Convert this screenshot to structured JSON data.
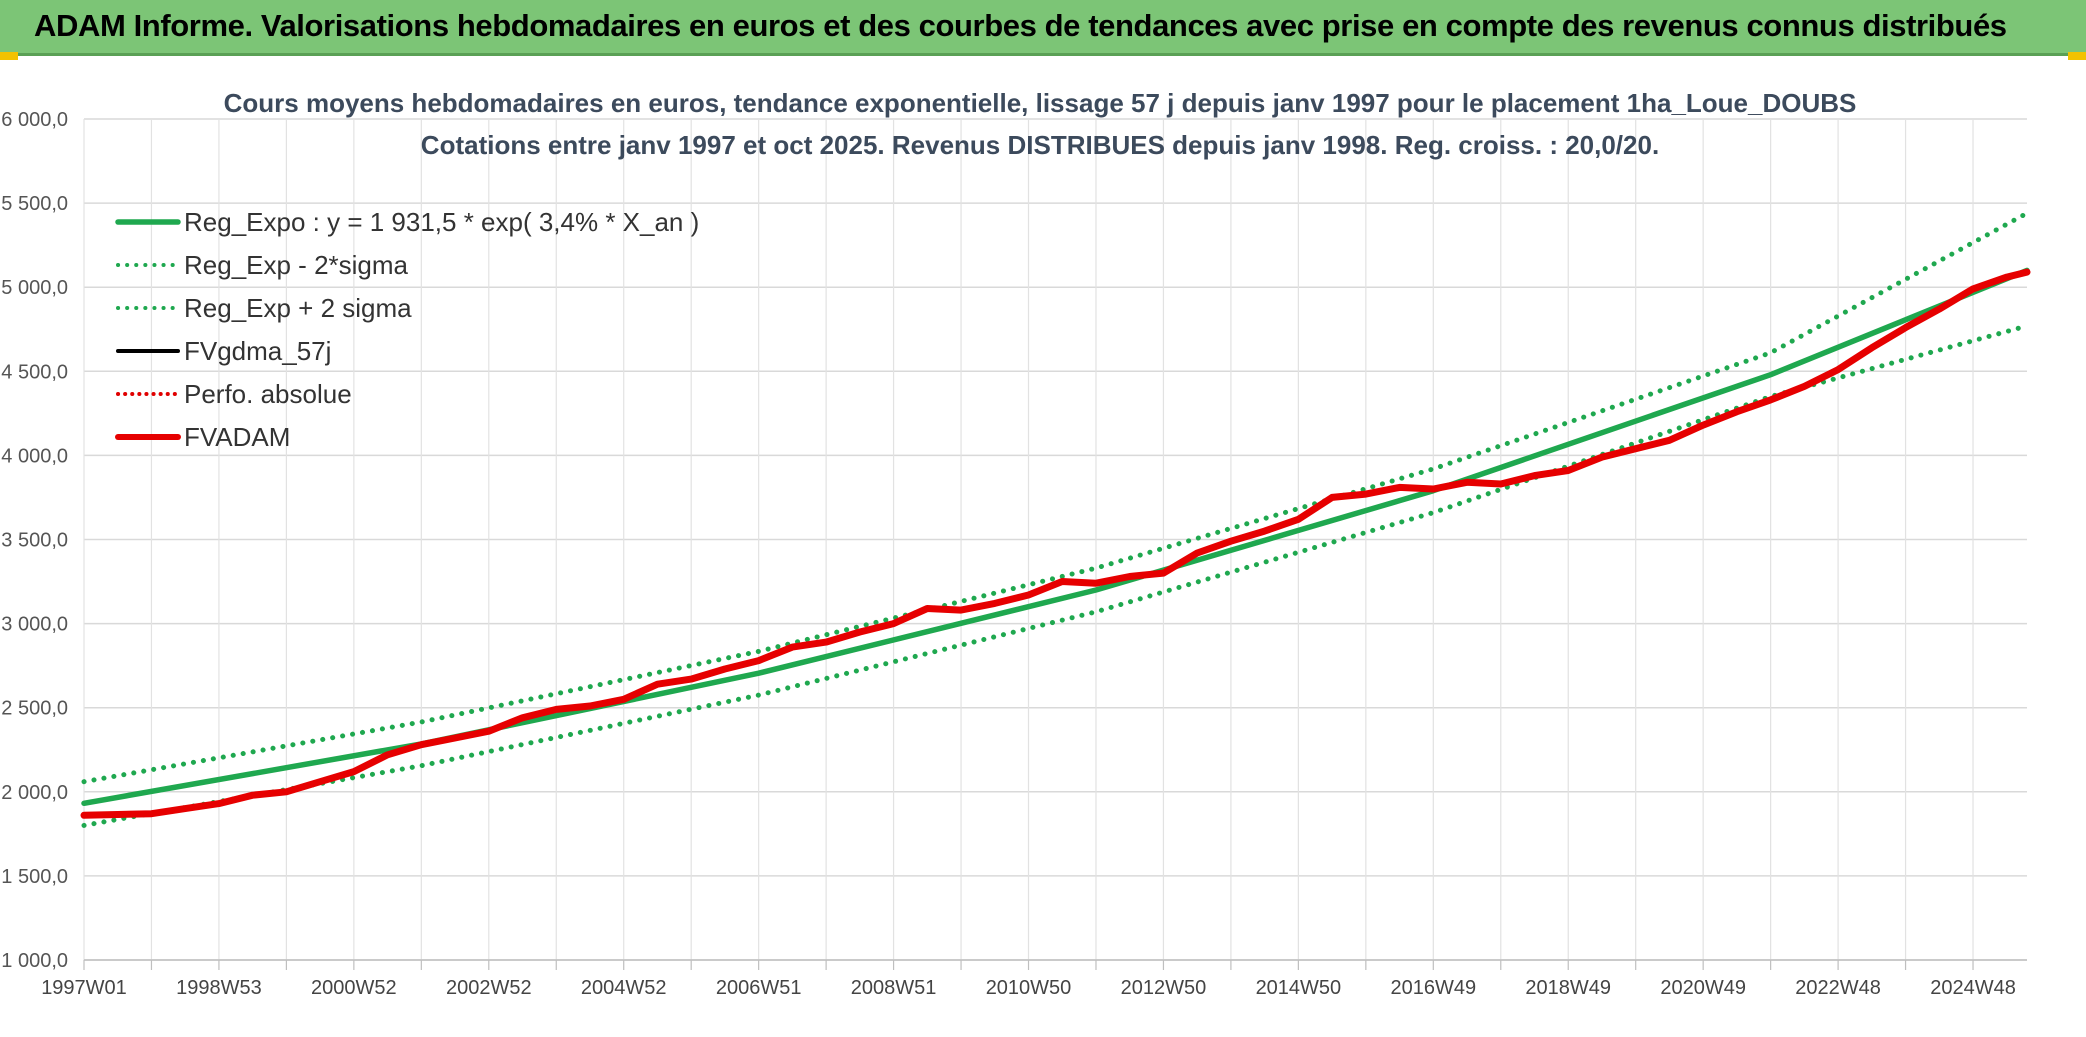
{
  "header": {
    "title": "ADAM Informe. Valorisations hebdomadaires en euros et des courbes de tendances avec prise en compte des revenus connus distribués"
  },
  "chart_data": {
    "type": "line",
    "title_lines": [
      "Cours moyens hebdomadaires en euros, tendance exponentielle, lissage 57 j depuis janv 1997 pour le placement 1ha_Loue_DOUBS",
      "Cotations entre janv 1997 et oct 2025. Revenus DISTRIBUES depuis janv 1998. Reg. croiss. : 20,0/20."
    ],
    "xlabel": "",
    "ylabel": "",
    "x_unit": "year",
    "xlim": [
      1997.0,
      2025.8
    ],
    "ylim": [
      1000,
      6000
    ],
    "y_ticks": [
      1000,
      1500,
      2000,
      2500,
      3000,
      3500,
      4000,
      4500,
      5000,
      5500,
      6000
    ],
    "y_tick_labels": [
      "1 000,0",
      "1 500,0",
      "2 000,0",
      "2 500,0",
      "3 000,0",
      "3 500,0",
      "4 000,0",
      "4 500,0",
      "5 000,0",
      "5 500,0",
      "6 000,0"
    ],
    "x_ticks": [
      1997.0,
      1998.0,
      1999.0,
      2000.0,
      2001.0,
      2002.0,
      2003.0,
      2004.0,
      2005.0,
      2006.0,
      2007.0,
      2008.0,
      2009.0,
      2010.0,
      2011.0,
      2012.0,
      2013.0,
      2014.0,
      2015.0,
      2016.0,
      2017.0,
      2018.0,
      2019.0,
      2020.0,
      2021.0,
      2022.0,
      2023.0,
      2024.0,
      2025.0
    ],
    "x_tick_labels": [
      "1997W01",
      "",
      "1998W53",
      "",
      "2000W52",
      "",
      "2002W52",
      "",
      "2004W52",
      "",
      "2006W51",
      "",
      "2008W51",
      "",
      "2010W50",
      "",
      "2012W50",
      "",
      "2014W50",
      "",
      "2016W49",
      "",
      "2018W49",
      "",
      "2020W49",
      "",
      "2022W48",
      "",
      "2024W48"
    ],
    "grid": true,
    "legend_position": "top-left",
    "series": [
      {
        "name": "Reg_Expo : y = 1 931,5 * exp( 3,4% *  X_an )",
        "color": "#1fa84f",
        "style": "solid",
        "x": [
          1997.0,
          2002.0,
          2007.0,
          2012.0,
          2017.0,
          2022.0,
          2025.8
        ],
        "y": [
          1931.5,
          2285,
          2705,
          3200,
          3790,
          4480,
          5100
        ]
      },
      {
        "name": "Reg_Exp - 2*sigma",
        "color": "#1fa84f",
        "style": "dotted",
        "x": [
          1997.0,
          2002.0,
          2007.0,
          2012.0,
          2017.0,
          2022.0,
          2025.8
        ],
        "y": [
          1800,
          2155,
          2575,
          3070,
          3660,
          4350,
          4770
        ]
      },
      {
        "name": "Reg_Exp + 2 sigma",
        "color": "#1fa84f",
        "style": "dotted",
        "x": [
          1997.0,
          2002.0,
          2007.0,
          2012.0,
          2017.0,
          2022.0,
          2025.8
        ],
        "y": [
          2060,
          2415,
          2835,
          3330,
          3920,
          4610,
          5440
        ]
      },
      {
        "name": "FVgdma_57j",
        "color": "#000000",
        "style": "solid",
        "x": [
          1997.0,
          1997.5,
          1998.0,
          1998.5,
          1999.0,
          1999.5,
          2000.0,
          2000.5,
          2001.0,
          2001.5,
          2002.0,
          2002.5,
          2003.0,
          2003.5,
          2004.0,
          2004.5,
          2005.0,
          2005.5,
          2006.0,
          2006.5,
          2007.0,
          2007.5,
          2008.0,
          2008.5,
          2009.0,
          2009.5,
          2010.0,
          2010.5,
          2011.0,
          2011.5,
          2012.0,
          2012.5,
          2013.0,
          2013.5,
          2014.0,
          2014.5,
          2015.0,
          2015.5,
          2016.0,
          2016.5,
          2017.0,
          2017.5,
          2018.0,
          2018.5,
          2019.0,
          2019.5,
          2020.0,
          2020.5,
          2021.0,
          2021.5,
          2022.0,
          2022.5,
          2023.0,
          2023.5,
          2024.0,
          2024.5,
          2025.0,
          2025.5,
          2025.8
        ],
        "y": [
          1860,
          1865,
          1870,
          1900,
          1930,
          1980,
          2000,
          2060,
          2120,
          2220,
          2280,
          2320,
          2360,
          2440,
          2490,
          2510,
          2550,
          2640,
          2670,
          2730,
          2780,
          2860,
          2890,
          2950,
          3000,
          3090,
          3080,
          3120,
          3170,
          3250,
          3240,
          3280,
          3300,
          3420,
          3490,
          3550,
          3620,
          3750,
          3770,
          3810,
          3800,
          3840,
          3830,
          3880,
          3910,
          3990,
          4040,
          4090,
          4180,
          4260,
          4330,
          4410,
          4510,
          4640,
          4760,
          4870,
          4990,
          5060,
          5090
        ]
      },
      {
        "name": "Perfo. absolue",
        "color": "#e00000",
        "style": "dotted",
        "x": [],
        "y": []
      },
      {
        "name": "FVADAM",
        "color": "#e60000",
        "style": "solid-thick",
        "x": [
          1997.0,
          1997.5,
          1998.0,
          1998.5,
          1999.0,
          1999.5,
          2000.0,
          2000.5,
          2001.0,
          2001.5,
          2002.0,
          2002.5,
          2003.0,
          2003.5,
          2004.0,
          2004.5,
          2005.0,
          2005.5,
          2006.0,
          2006.5,
          2007.0,
          2007.5,
          2008.0,
          2008.5,
          2009.0,
          2009.5,
          2010.0,
          2010.5,
          2011.0,
          2011.5,
          2012.0,
          2012.5,
          2013.0,
          2013.5,
          2014.0,
          2014.5,
          2015.0,
          2015.5,
          2016.0,
          2016.5,
          2017.0,
          2017.5,
          2018.0,
          2018.5,
          2019.0,
          2019.5,
          2020.0,
          2020.5,
          2021.0,
          2021.5,
          2022.0,
          2022.5,
          2023.0,
          2023.5,
          2024.0,
          2024.5,
          2025.0,
          2025.5,
          2025.8
        ],
        "y": [
          1860,
          1865,
          1870,
          1900,
          1930,
          1980,
          2000,
          2060,
          2120,
          2220,
          2280,
          2320,
          2360,
          2440,
          2490,
          2510,
          2550,
          2640,
          2670,
          2730,
          2780,
          2860,
          2890,
          2950,
          3000,
          3090,
          3080,
          3120,
          3170,
          3250,
          3240,
          3280,
          3300,
          3420,
          3490,
          3550,
          3620,
          3750,
          3770,
          3810,
          3800,
          3840,
          3830,
          3880,
          3910,
          3990,
          4040,
          4090,
          4180,
          4260,
          4330,
          4410,
          4510,
          4640,
          4760,
          4870,
          4990,
          5060,
          5090
        ]
      }
    ]
  }
}
